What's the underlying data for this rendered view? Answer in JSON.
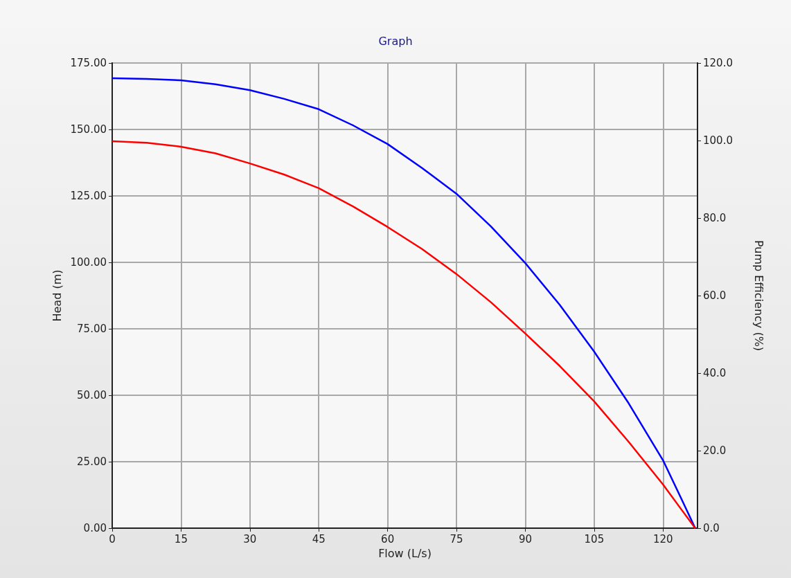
{
  "chart_data": {
    "type": "line",
    "title": "Graph",
    "xlabel": "Flow (L/s)",
    "ylabel": "Head (m)",
    "y2label": "Pump Efficiency (%)",
    "x": [
      0,
      7.5,
      15,
      22.5,
      30,
      37.5,
      45,
      52.5,
      60,
      67.5,
      75,
      82.5,
      90,
      97.5,
      105,
      112.5,
      120,
      124,
      127
    ],
    "series": [
      {
        "color": "#0000ff",
        "values": [
          169.3,
          169,
          168.5,
          167,
          164.8,
          161.5,
          157.6,
          151.5,
          144.5,
          135.5,
          125.8,
          113.5,
          99.7,
          84,
          66.4,
          47,
          25.5,
          11,
          0
        ]
      },
      {
        "color": "#ff0000",
        "values": [
          145.6,
          145,
          143.5,
          141,
          137.2,
          133,
          127.9,
          121,
          113.3,
          105,
          95.6,
          85,
          73.2,
          61,
          47.7,
          32.5,
          16.4,
          7,
          0
        ]
      }
    ],
    "xlim": [
      0,
      127.5
    ],
    "xticks": [
      0,
      15,
      30,
      45,
      60,
      75,
      90,
      105,
      120
    ],
    "ylim": [
      0,
      175
    ],
    "yticks": [
      {
        "value": 0,
        "label": "0.00"
      },
      {
        "value": 25,
        "label": "25.00"
      },
      {
        "value": 50,
        "label": "50.00"
      },
      {
        "value": 75,
        "label": "75.00"
      },
      {
        "value": 100,
        "label": "100.00"
      },
      {
        "value": 125,
        "label": "125.00"
      },
      {
        "value": 150,
        "label": "150.00"
      },
      {
        "value": 175,
        "label": "175.00"
      }
    ],
    "y2lim": [
      0,
      120
    ],
    "y2ticks": [
      {
        "value": 0,
        "label": "0.0"
      },
      {
        "value": 20,
        "label": "20.0"
      },
      {
        "value": 40,
        "label": "40.0"
      },
      {
        "value": 60,
        "label": "60.0"
      },
      {
        "value": 80,
        "label": "80.0"
      },
      {
        "value": 100,
        "label": "100.0"
      },
      {
        "value": 120,
        "label": "120.0"
      }
    ],
    "grid": true,
    "marker": "none",
    "line_style": "solid"
  }
}
